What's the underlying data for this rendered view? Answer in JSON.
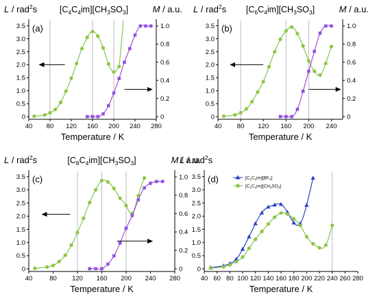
{
  "colors": {
    "green": "#76c043",
    "green_marker": "#8dc63f",
    "purple": "#9c3fd6",
    "purple_marker": "#8f52e0",
    "blue": "#1732b5",
    "blue_marker": "#2742c8",
    "gridline": "#b3b3b3"
  },
  "chart_data": [
    {
      "panel": "(a)",
      "type": "line",
      "title": "[C4C4im][CH3SO3]",
      "xlabel": "Temperature / K",
      "ylabel_left": "L / rad²s",
      "ylabel_right": "M / a.u.",
      "xlim": [
        40,
        280
      ],
      "ylim_left": [
        -0.1,
        3.7
      ],
      "ylim_right": [
        -0.03,
        1.06
      ],
      "x_ticks": [
        "40",
        "80",
        "120",
        "160",
        "200",
        "240",
        "280"
      ],
      "y_ticks_left": [
        "0",
        "0.5",
        "1.0",
        "1.5",
        "2.0",
        "2.5",
        "3.0",
        "3.5"
      ],
      "y_ticks_right": [
        "0",
        "0.2",
        "0.4",
        "0.6",
        "0.8",
        "1.0"
      ],
      "vlines": [
        80,
        160,
        200
      ],
      "series": [
        {
          "axis": "left",
          "x": [
            50,
            70,
            80,
            90,
            100,
            110,
            120,
            130,
            140,
            150,
            160,
            170,
            180,
            190,
            200,
            210
          ],
          "y": [
            0.02,
            0.07,
            0.15,
            0.28,
            0.55,
            0.98,
            1.48,
            2.05,
            2.62,
            3.05,
            3.28,
            3.1,
            2.65,
            2.03,
            1.72,
            1.93
          ],
          "curve_x": [
            210,
            214,
            218
          ],
          "curve_y": [
            1.93,
            2.7,
            3.7
          ]
        },
        {
          "axis": "right",
          "x": [
            150,
            160,
            170,
            180,
            190,
            200,
            210,
            220,
            230,
            240,
            250,
            260,
            270
          ],
          "y": [
            0.0,
            0.0,
            0.0,
            0.03,
            0.12,
            0.26,
            0.42,
            0.6,
            0.75,
            0.9,
            1.0,
            1.0,
            1.0
          ]
        }
      ],
      "arrows": [
        {
          "direction": "left",
          "axis": "left",
          "x_from": 108,
          "x_to": 60,
          "y": 2.0
        },
        {
          "direction": "right",
          "axis": "right",
          "x_from": 220,
          "x_to": 272,
          "y": 0.3
        }
      ]
    },
    {
      "panel": "(b)",
      "type": "line",
      "title": "[C6C4im][CH3SO3]",
      "xlabel": "Temperature / K",
      "ylabel_left": "L / rad²s",
      "ylabel_right": "M / a.u.",
      "xlim": [
        40,
        260
      ],
      "ylim_left": [
        -0.1,
        3.7
      ],
      "ylim_right": [
        -0.03,
        1.06
      ],
      "x_ticks": [
        "40",
        "80",
        "120",
        "160",
        "200",
        "240"
      ],
      "y_ticks_left": [
        "0",
        "0.5",
        "1.0",
        "1.5",
        "2.0",
        "2.5",
        "3.0",
        "3.5"
      ],
      "y_ticks_right": [
        "0",
        "0.2",
        "0.4",
        "0.6",
        "0.8",
        "1.0"
      ],
      "vlines": [
        80,
        160,
        200
      ],
      "series": [
        {
          "axis": "left",
          "x": [
            50,
            70,
            80,
            90,
            100,
            110,
            120,
            130,
            140,
            150,
            160,
            170,
            180,
            190,
            200,
            210,
            220,
            230,
            240
          ],
          "y": [
            0.02,
            0.07,
            0.15,
            0.3,
            0.58,
            0.95,
            1.35,
            1.92,
            2.5,
            2.98,
            3.3,
            3.45,
            3.2,
            2.72,
            2.15,
            1.75,
            1.6,
            2.05,
            2.7
          ]
        },
        {
          "axis": "right",
          "x": [
            150,
            160,
            170,
            180,
            190,
            200,
            210,
            220,
            230,
            240
          ],
          "y": [
            0.0,
            0.0,
            0.0,
            0.08,
            0.28,
            0.5,
            0.72,
            0.92,
            1.0,
            1.0
          ]
        }
      ],
      "arrows": [
        {
          "direction": "left",
          "axis": "left",
          "x_from": 120,
          "x_to": 62,
          "y": 2.0
        },
        {
          "direction": "right",
          "axis": "right",
          "x_from": 200,
          "x_to": 256,
          "y": 0.3
        }
      ]
    },
    {
      "panel": "(c)",
      "type": "line",
      "title": "[C8C4im][CH3SO3]",
      "xlabel": "Temperature / K",
      "ylabel_left": "L / rad²s",
      "ylabel_right": "M / a.u.",
      "xlim": [
        40,
        280
      ],
      "ylim_left": [
        -0.1,
        3.7
      ],
      "ylim_right": [
        -0.03,
        1.06
      ],
      "x_ticks": [
        "40",
        "80",
        "120",
        "160",
        "200",
        "240",
        "280"
      ],
      "y_ticks_left": [
        "0",
        "0.5",
        "1.0",
        "1.5",
        "2.0",
        "2.5",
        "3.0",
        "3.5"
      ],
      "y_ticks_right": [
        "0",
        "0.2",
        "0.4",
        "0.6",
        "0.8",
        "1.0"
      ],
      "vlines": [
        120,
        160,
        200
      ],
      "series": [
        {
          "axis": "left",
          "x": [
            50,
            70,
            80,
            90,
            100,
            110,
            120,
            130,
            140,
            150,
            160,
            170,
            180,
            190,
            200,
            210,
            220,
            230
          ],
          "y": [
            0.02,
            0.07,
            0.13,
            0.28,
            0.52,
            0.9,
            1.38,
            1.92,
            2.52,
            3.0,
            3.35,
            3.3,
            3.05,
            2.68,
            2.4,
            2.1,
            2.78,
            3.45
          ]
        },
        {
          "axis": "right",
          "x": [
            140,
            150,
            160,
            170,
            180,
            190,
            200,
            210,
            220,
            230,
            240,
            250,
            260
          ],
          "y": [
            0.0,
            0.0,
            0.0,
            0.05,
            0.14,
            0.28,
            0.44,
            0.58,
            0.75,
            0.88,
            0.93,
            0.95,
            0.95
          ]
        }
      ],
      "arrows": [
        {
          "direction": "left",
          "axis": "left",
          "x_from": 108,
          "x_to": 62,
          "y": 2.07
        },
        {
          "direction": "right",
          "axis": "right",
          "x_from": 185,
          "x_to": 243,
          "y": 0.3
        }
      ]
    },
    {
      "panel": "(d)",
      "type": "line",
      "title": "",
      "xlabel": "Temperature / K",
      "ylabel_left": "L / rad²s",
      "xlim": [
        40,
        280
      ],
      "ylim_left": [
        -0.1,
        3.7
      ],
      "x_ticks": [
        "40",
        "60",
        "80",
        "100",
        "120",
        "140",
        "160",
        "180",
        "200",
        "220",
        "240",
        "260",
        "280"
      ],
      "y_ticks_left": [
        "0",
        "0.5",
        "1.0",
        "1.5",
        "2.0",
        "2.5",
        "3.0",
        "3.5"
      ],
      "vlines": [
        240
      ],
      "legend": "top-left",
      "series": [
        {
          "name": "[C1C4im][BF4]",
          "color": "blue",
          "marker": "triangle",
          "x": [
            50,
            70,
            80,
            90,
            100,
            110,
            120,
            130,
            140,
            150,
            160,
            170,
            180,
            190,
            200,
            210
          ],
          "y": [
            0.05,
            0.12,
            0.2,
            0.37,
            0.75,
            1.22,
            1.72,
            2.13,
            2.35,
            2.43,
            2.45,
            2.15,
            1.75,
            1.72,
            2.42,
            3.45
          ]
        },
        {
          "name": "[C1C4im][CH3SO3]",
          "color": "green",
          "marker": "circle",
          "x": [
            50,
            70,
            80,
            90,
            100,
            110,
            120,
            130,
            140,
            150,
            160,
            170,
            180,
            190,
            200,
            210,
            220,
            230,
            240
          ],
          "y": [
            0.03,
            0.08,
            0.15,
            0.27,
            0.45,
            0.78,
            1.12,
            1.42,
            1.7,
            1.96,
            2.12,
            2.08,
            1.9,
            1.65,
            1.22,
            0.95,
            0.8,
            0.9,
            1.65
          ]
        }
      ]
    }
  ]
}
